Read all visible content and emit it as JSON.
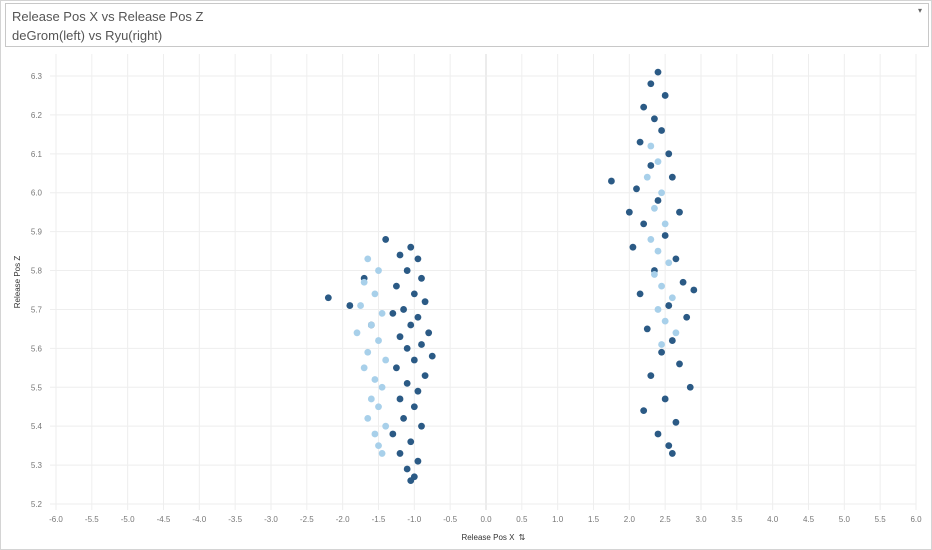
{
  "header": {
    "title": "Release Pos X vs Release Pos Z",
    "subtitle": "deGrom(left) vs Ryu(right)",
    "menu_icon": "caret-down-icon"
  },
  "colors": {
    "dark_series": "#2b5a85",
    "light_series": "#a8d0ea",
    "gridline": "#eeeeee",
    "zero_line": "#d9d9d9"
  },
  "chart_data": {
    "type": "scatter",
    "title": "Release Pos X vs Release Pos Z",
    "subtitle": "deGrom(left) vs Ryu(right)",
    "xlabel": "Release Pos X",
    "ylabel": "Release Pos Z",
    "xlim": [
      -6.0,
      6.0
    ],
    "ylim": [
      5.2,
      6.3
    ],
    "x_ticks": [
      -6.0,
      -5.5,
      -5.0,
      -4.5,
      -4.0,
      -3.5,
      -3.0,
      -2.5,
      -2.0,
      -1.5,
      -1.0,
      -0.5,
      0.0,
      0.5,
      1.0,
      1.5,
      2.0,
      2.5,
      3.0,
      3.5,
      4.0,
      4.5,
      5.0,
      5.5,
      6.0
    ],
    "y_ticks": [
      5.2,
      5.3,
      5.4,
      5.5,
      5.6,
      5.7,
      5.8,
      5.9,
      6.0,
      6.1,
      6.2,
      6.3
    ],
    "grid": true,
    "legend": "none",
    "series": [
      {
        "color": "#2b5a85",
        "points": [
          [
            -1.05,
            5.86
          ],
          [
            -1.2,
            5.84
          ],
          [
            -0.95,
            5.83
          ],
          [
            -1.1,
            5.8
          ],
          [
            -0.9,
            5.78
          ],
          [
            -1.25,
            5.76
          ],
          [
            -1.0,
            5.74
          ],
          [
            -0.85,
            5.72
          ],
          [
            -1.15,
            5.7
          ],
          [
            -1.3,
            5.69
          ],
          [
            -0.95,
            5.68
          ],
          [
            -1.05,
            5.66
          ],
          [
            -0.8,
            5.64
          ],
          [
            -1.2,
            5.63
          ],
          [
            -0.9,
            5.61
          ],
          [
            -1.1,
            5.6
          ],
          [
            -0.75,
            5.58
          ],
          [
            -1.0,
            5.57
          ],
          [
            -1.25,
            5.55
          ],
          [
            -0.85,
            5.53
          ],
          [
            -1.1,
            5.51
          ],
          [
            -0.95,
            5.49
          ],
          [
            -1.2,
            5.47
          ],
          [
            -1.0,
            5.45
          ],
          [
            -1.15,
            5.42
          ],
          [
            -0.9,
            5.4
          ],
          [
            -1.3,
            5.38
          ],
          [
            -1.05,
            5.36
          ],
          [
            -1.2,
            5.33
          ],
          [
            -0.95,
            5.31
          ],
          [
            -1.1,
            5.29
          ],
          [
            -1.0,
            5.27
          ],
          [
            -1.05,
            5.26
          ],
          [
            -2.2,
            5.73
          ],
          [
            -1.9,
            5.71
          ],
          [
            -1.7,
            5.78
          ],
          [
            -1.4,
            5.88
          ],
          [
            -1.6,
            5.66
          ],
          [
            2.4,
            6.31
          ],
          [
            2.3,
            6.28
          ],
          [
            2.5,
            6.25
          ],
          [
            2.2,
            6.22
          ],
          [
            2.35,
            6.19
          ],
          [
            2.45,
            6.16
          ],
          [
            2.15,
            6.13
          ],
          [
            2.55,
            6.1
          ],
          [
            2.3,
            6.07
          ],
          [
            2.6,
            6.04
          ],
          [
            2.1,
            6.01
          ],
          [
            2.4,
            5.98
          ],
          [
            2.7,
            5.95
          ],
          [
            2.2,
            5.92
          ],
          [
            2.5,
            5.89
          ],
          [
            2.05,
            5.86
          ],
          [
            2.65,
            5.83
          ],
          [
            2.35,
            5.8
          ],
          [
            2.75,
            5.77
          ],
          [
            2.15,
            5.74
          ],
          [
            2.55,
            5.71
          ],
          [
            2.8,
            5.68
          ],
          [
            2.25,
            5.65
          ],
          [
            2.6,
            5.62
          ],
          [
            2.45,
            5.59
          ],
          [
            2.7,
            5.56
          ],
          [
            2.3,
            5.53
          ],
          [
            2.85,
            5.5
          ],
          [
            2.5,
            5.47
          ],
          [
            2.2,
            5.44
          ],
          [
            2.65,
            5.41
          ],
          [
            2.4,
            5.38
          ],
          [
            2.55,
            5.35
          ],
          [
            2.6,
            5.33
          ],
          [
            1.75,
            6.03
          ],
          [
            2.0,
            5.95
          ],
          [
            2.9,
            5.75
          ]
        ]
      },
      {
        "color": "#a8d0ea",
        "points": [
          [
            -1.65,
            5.83
          ],
          [
            -1.5,
            5.8
          ],
          [
            -1.7,
            5.77
          ],
          [
            -1.55,
            5.74
          ],
          [
            -1.75,
            5.71
          ],
          [
            -1.45,
            5.69
          ],
          [
            -1.6,
            5.66
          ],
          [
            -1.8,
            5.64
          ],
          [
            -1.5,
            5.62
          ],
          [
            -1.65,
            5.59
          ],
          [
            -1.4,
            5.57
          ],
          [
            -1.7,
            5.55
          ],
          [
            -1.55,
            5.52
          ],
          [
            -1.45,
            5.5
          ],
          [
            -1.6,
            5.47
          ],
          [
            -1.5,
            5.45
          ],
          [
            -1.65,
            5.42
          ],
          [
            -1.4,
            5.4
          ],
          [
            -1.55,
            5.38
          ],
          [
            -1.5,
            5.35
          ],
          [
            -1.45,
            5.33
          ],
          [
            2.3,
            6.12
          ],
          [
            2.4,
            6.08
          ],
          [
            2.25,
            6.04
          ],
          [
            2.45,
            6.0
          ],
          [
            2.35,
            5.96
          ],
          [
            2.5,
            5.92
          ],
          [
            2.3,
            5.88
          ],
          [
            2.4,
            5.85
          ],
          [
            2.55,
            5.82
          ],
          [
            2.35,
            5.79
          ],
          [
            2.45,
            5.76
          ],
          [
            2.6,
            5.73
          ],
          [
            2.4,
            5.7
          ],
          [
            2.5,
            5.67
          ],
          [
            2.65,
            5.64
          ],
          [
            2.45,
            5.61
          ]
        ]
      }
    ]
  }
}
